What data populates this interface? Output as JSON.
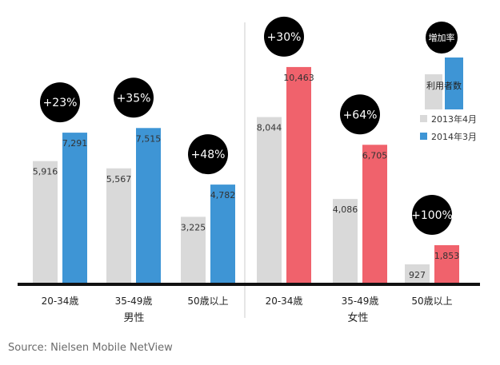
{
  "chart_data": {
    "type": "bar",
    "title": "",
    "groups": [
      {
        "label": "男性",
        "categories": [
          {
            "label": "20-34歳",
            "values": [
              5916,
              7291
            ],
            "value_labels": [
              "5,916",
              "7,291"
            ],
            "growth": "+23%"
          },
          {
            "label": "35-49歳",
            "values": [
              5567,
              7515
            ],
            "value_labels": [
              "5,567",
              "7,515"
            ],
            "growth": "+35%"
          },
          {
            "label": "50歳以上",
            "values": [
              3225,
              4782
            ],
            "value_labels": [
              "3,225",
              "4,782"
            ],
            "growth": "+48%"
          }
        ]
      },
      {
        "label": "女性",
        "categories": [
          {
            "label": "20-34歳",
            "values": [
              8044,
              10463
            ],
            "value_labels": [
              "8,044",
              "10,463"
            ],
            "growth": "+30%"
          },
          {
            "label": "35-49歳",
            "values": [
              4086,
              6705
            ],
            "value_labels": [
              "4,086",
              "6,705"
            ],
            "growth": "+64%"
          },
          {
            "label": "50歳以上",
            "values": [
              927,
              1853
            ],
            "value_labels": [
              "927",
              "1,853"
            ],
            "growth": "+100%"
          }
        ]
      }
    ],
    "series": [
      {
        "name": "2013年4月"
      },
      {
        "name": "2014年3月"
      }
    ],
    "ylim": [
      0,
      11000
    ],
    "grid": false,
    "legend": {
      "position": "top-right",
      "growth_label": "増加率",
      "bar_label": "利用者数",
      "items": [
        "2013年4月",
        "2014年3月"
      ]
    },
    "colors": {
      "prev": "#d9d9d9",
      "male_curr": "#3e95d5",
      "female_curr": "#f0626c",
      "bubble": "#000000",
      "axis": "#111111"
    }
  },
  "source": "Source: Nielsen Mobile NetView"
}
